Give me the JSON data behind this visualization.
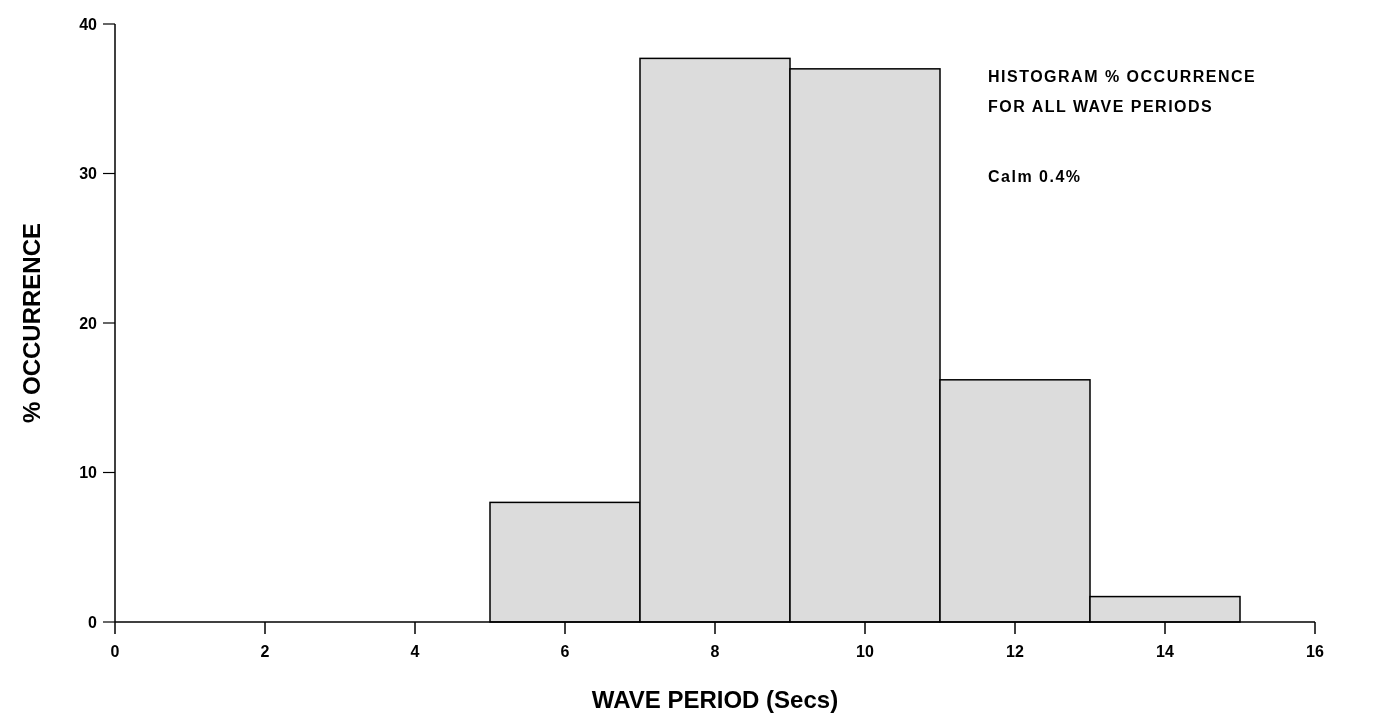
{
  "chart_data": {
    "type": "histogram",
    "xlabel": "WAVE PERIOD (Secs)",
    "ylabel": "% OCCURRENCE",
    "annotations": [
      "HISTOGRAM % OCCURRENCE\nFOR ALL WAVE PERIODS",
      "Calm 0.4%"
    ],
    "bins": [
      5,
      7,
      9,
      11,
      13,
      15
    ],
    "values": [
      8.0,
      37.7,
      37.0,
      16.2,
      1.7
    ],
    "color": "#dcdcdc",
    "xlim": [
      0,
      16
    ],
    "xticks": [
      0,
      2,
      4,
      6,
      8,
      10,
      12,
      14,
      16
    ],
    "ylim": [
      0,
      40
    ],
    "yticks": [
      0,
      10,
      20,
      30,
      40
    ]
  }
}
